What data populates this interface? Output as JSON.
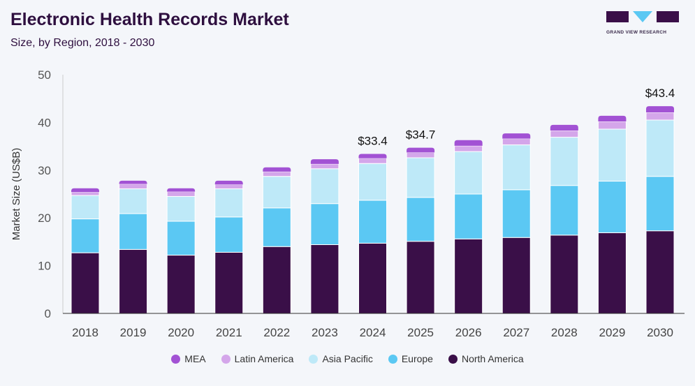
{
  "header": {
    "title": "Electronic Health Records Market",
    "subtitle": "Size, by Region, 2018 - 2030"
  },
  "logo": {
    "text": "GRAND VIEW RESEARCH"
  },
  "chart_data": {
    "type": "bar",
    "stacked": true,
    "title": "Electronic Health Records Market",
    "subtitle": "Size, by Region, 2018 - 2030",
    "xlabel": "",
    "ylabel": "Market Size (US$B)",
    "ylim": [
      0,
      50
    ],
    "yticks": [
      0,
      10,
      20,
      30,
      40,
      50
    ],
    "grid": false,
    "legend": "bottom",
    "categories": [
      "2018",
      "2019",
      "2020",
      "2021",
      "2022",
      "2023",
      "2024",
      "2025",
      "2026",
      "2027",
      "2028",
      "2029",
      "2030"
    ],
    "series": [
      {
        "name": "North America",
        "color": "#3a0f48",
        "values": [
          12.7,
          13.4,
          12.2,
          12.8,
          14.0,
          14.4,
          14.7,
          15.1,
          15.6,
          15.9,
          16.4,
          16.9,
          17.3
        ]
      },
      {
        "name": "Europe",
        "color": "#5bc8f3",
        "values": [
          7.1,
          7.5,
          7.1,
          7.4,
          8.1,
          8.6,
          9.0,
          9.2,
          9.4,
          10.0,
          10.4,
          10.8,
          11.4
        ]
      },
      {
        "name": "Asia Pacific",
        "color": "#bee9f8",
        "values": [
          4.9,
          5.2,
          5.2,
          5.9,
          6.6,
          7.3,
          7.7,
          8.3,
          8.9,
          9.4,
          10.1,
          10.9,
          11.8
        ]
      },
      {
        "name": "Latin America",
        "color": "#d4a6ea",
        "values": [
          0.7,
          1.0,
          1.0,
          0.9,
          1.0,
          1.0,
          1.1,
          1.1,
          1.2,
          1.3,
          1.4,
          1.6,
          1.6
        ]
      },
      {
        "name": "MEA",
        "color": "#a252d4",
        "values": [
          0.8,
          0.7,
          0.7,
          0.8,
          0.9,
          1.0,
          0.9,
          1.0,
          1.2,
          1.1,
          1.2,
          1.2,
          1.3
        ]
      }
    ],
    "data_labels": [
      {
        "category": "2024",
        "text": "$33.4"
      },
      {
        "category": "2025",
        "text": "$34.7"
      },
      {
        "category": "2030",
        "text": "$43.4"
      }
    ],
    "legend_order": [
      "MEA",
      "Latin America",
      "Asia Pacific",
      "Europe",
      "North America"
    ]
  }
}
